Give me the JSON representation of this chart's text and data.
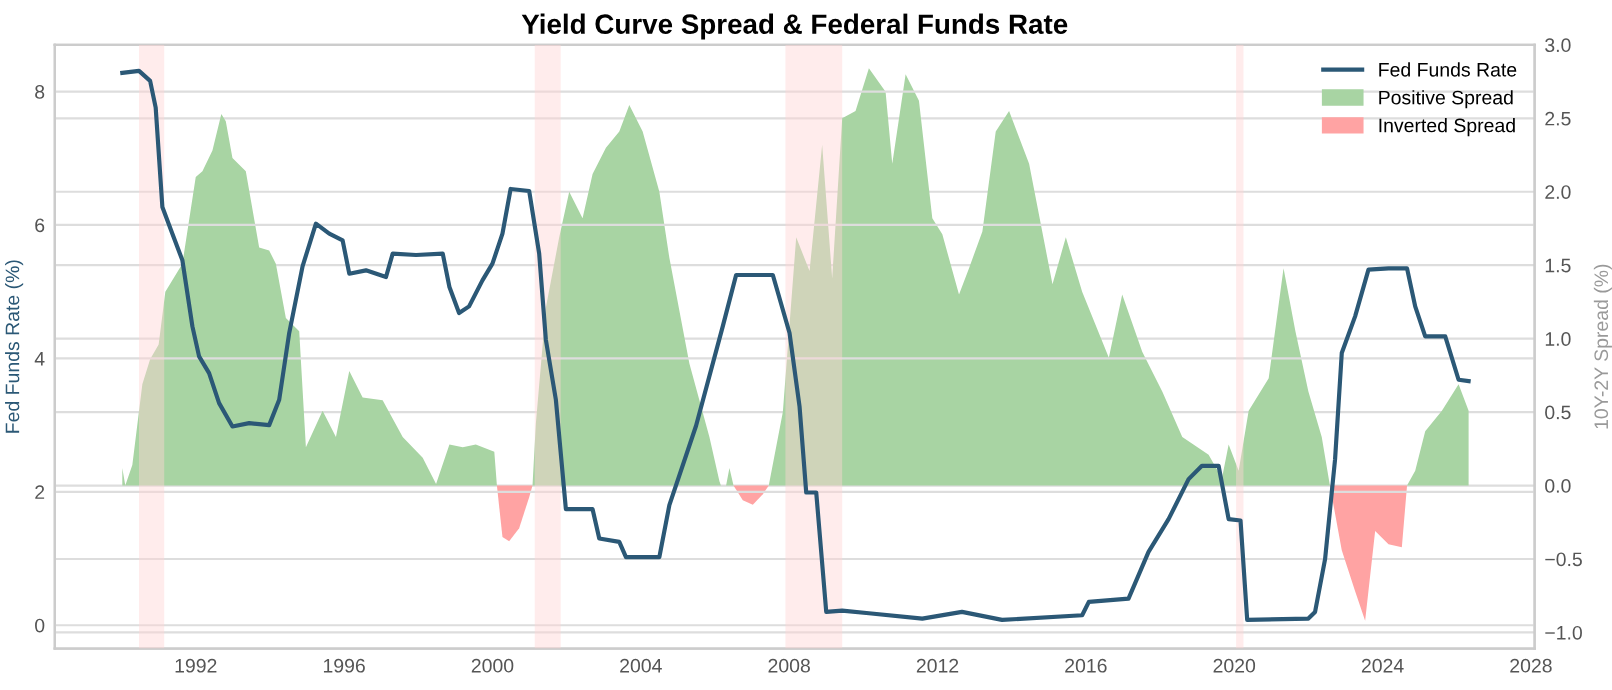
{
  "chart_data": {
    "type": "line",
    "title": "Yield Curve Spread & Federal Funds Rate",
    "ylabel": "Fed Funds Rate (%)",
    "y2label": "10Y-2Y Spread (%)",
    "xlim": [
      1988.2,
      2028.1
    ],
    "xticks": [
      1992,
      1996,
      2000,
      2004,
      2008,
      2012,
      2016,
      2020,
      2024,
      2028
    ],
    "ylim": [
      -0.35,
      8.7
    ],
    "yticks": [
      0,
      2,
      4,
      6,
      8
    ],
    "y2lim": [
      -1.11,
      3.0
    ],
    "y2ticks": [
      {
        "value": -1.0,
        "label": "−1.0"
      },
      {
        "value": -0.5,
        "label": "−0.5"
      },
      {
        "value": 0.0,
        "label": "0.0"
      },
      0.5,
      {
        "value": 1.0,
        "label": "1.0"
      },
      1.5,
      {
        "value": 2.0,
        "label": "2.0"
      },
      2.5,
      {
        "value": 3.0,
        "label": "3.0"
      }
    ],
    "grid": true,
    "legend": "top right",
    "series": [
      {
        "name": "Fed Funds Rate",
        "axis": "y",
        "color": "#2b5876",
        "x": [
          1990.02,
          1990.47,
          1990.77,
          1990.92,
          1991.1,
          1991.37,
          1991.64,
          1991.91,
          1992.09,
          1992.36,
          1992.63,
          1992.99,
          1993.44,
          1993.98,
          1994.25,
          1994.52,
          1994.88,
          1995.24,
          1995.6,
          1995.96,
          1996.14,
          1996.59,
          1997.13,
          1997.31,
          1997.94,
          1998.66,
          1998.84,
          1999.1,
          1999.37,
          1999.73,
          2000.0,
          2000.27,
          2000.49,
          2000.99,
          2001.26,
          2001.44,
          2001.71,
          2001.98,
          2002.7,
          2002.88,
          2003.42,
          2003.6,
          2004.5,
          2004.77,
          2005.49,
          2006.21,
          2006.57,
          2007.56,
          2008.01,
          2008.28,
          2008.46,
          2008.73,
          2009.0,
          2009.43,
          2010.15,
          2011.59,
          2012.66,
          2013.74,
          2015.9,
          2016.08,
          2017.15,
          2017.69,
          2018.23,
          2018.77,
          2019.13,
          2019.58,
          2019.85,
          2020.17,
          2020.35,
          2022.0,
          2022.18,
          2022.45,
          2022.72,
          2022.9,
          2023.26,
          2023.62,
          2024.16,
          2024.66,
          2024.88,
          2025.15,
          2025.69,
          2026.05,
          2026.32
        ],
        "values": [
          8.28,
          8.31,
          8.16,
          7.76,
          6.27,
          5.87,
          5.47,
          4.48,
          4.03,
          3.78,
          3.33,
          2.98,
          3.03,
          3.0,
          3.38,
          4.38,
          5.38,
          6.02,
          5.87,
          5.77,
          5.27,
          5.32,
          5.22,
          5.57,
          5.55,
          5.57,
          5.07,
          4.68,
          4.78,
          5.17,
          5.42,
          5.87,
          6.54,
          6.51,
          5.57,
          4.28,
          3.38,
          1.74,
          1.74,
          1.3,
          1.25,
          1.02,
          1.02,
          1.8,
          2.99,
          4.48,
          5.25,
          5.25,
          4.38,
          3.28,
          1.99,
          1.99,
          0.2,
          0.22,
          0.18,
          0.1,
          0.2,
          0.08,
          0.15,
          0.35,
          0.4,
          1.1,
          1.59,
          2.19,
          2.39,
          2.39,
          1.59,
          1.57,
          0.08,
          0.1,
          0.2,
          0.99,
          2.49,
          4.08,
          4.63,
          5.33,
          5.35,
          5.35,
          4.78,
          4.33,
          4.33,
          3.68,
          3.66
        ]
      },
      {
        "name": "Positive Spread",
        "type": "area",
        "axis": "y2",
        "color": "#a8d4a3",
        "x": [
          1990.02,
          1990.1,
          1990.29,
          1990.56,
          1990.77,
          1991.0,
          1991.18,
          1991.64,
          1992.0,
          1992.18,
          1992.45,
          1992.69,
          1992.81,
          1992.99,
          1993.35,
          1993.71,
          1993.98,
          1994.16,
          1994.43,
          1994.79,
          1994.97,
          1995.42,
          1995.78,
          1996.14,
          1996.5,
          1997.04,
          1997.58,
          1998.12,
          1998.48,
          1998.84,
          1999.2,
          1999.55,
          2000.05,
          2000.12,
          2000.5,
          2001.08,
          2001.17,
          2001.44,
          2001.8,
          2002.07,
          2002.43,
          2002.7,
          2003.06,
          2003.42,
          2003.69,
          2004.05,
          2004.5,
          2004.77,
          2005.31,
          2005.85,
          2006.12,
          2006.16,
          2006.2,
          2006.3,
          2006.39,
          2006.5,
          2007.0,
          2007.45,
          2007.83,
          2008.19,
          2008.55,
          2008.89,
          2009.16,
          2009.43,
          2009.79,
          2010.15,
          2010.6,
          2010.78,
          2011.14,
          2011.5,
          2011.86,
          2012.13,
          2012.58,
          2012.85,
          2013.21,
          2013.57,
          2013.93,
          2014.47,
          2015.1,
          2015.46,
          2015.9,
          2016.62,
          2016.98,
          2017.52,
          2018.06,
          2018.6,
          2019.31,
          2019.67,
          2019.85,
          2020.12,
          2020.39,
          2020.93,
          2021.33,
          2021.65,
          2022.0,
          2022.36,
          2022.58,
          2023.5,
          2024.66,
          2024.88,
          2025.15,
          2025.6,
          2026.05,
          2026.32
        ],
        "values": [
          0.12,
          0.0,
          0.14,
          0.69,
          0.86,
          0.96,
          1.32,
          1.51,
          2.1,
          2.14,
          2.28,
          2.53,
          2.48,
          2.23,
          2.14,
          1.62,
          1.6,
          1.51,
          1.14,
          1.05,
          0.26,
          0.51,
          0.33,
          0.78,
          0.6,
          0.58,
          0.33,
          0.19,
          0.01,
          0.28,
          0.26,
          0.28,
          0.23,
          0.0,
          null,
          0.0,
          0.42,
          1.21,
          1.69,
          2.0,
          1.82,
          2.12,
          2.3,
          2.41,
          2.59,
          2.41,
          2.0,
          1.55,
          0.83,
          0.33,
          0.03,
          0.0,
          0.0,
          0.0,
          0.12,
          0.0,
          null,
          0.0,
          0.5,
          1.69,
          1.46,
          2.32,
          1.41,
          2.5,
          2.55,
          2.84,
          2.68,
          2.19,
          2.8,
          2.62,
          1.82,
          1.71,
          1.3,
          1.48,
          1.73,
          2.41,
          2.55,
          2.19,
          1.37,
          1.69,
          1.32,
          0.87,
          1.3,
          0.91,
          0.64,
          0.33,
          0.21,
          0.05,
          0.28,
          0.1,
          0.51,
          0.73,
          1.48,
          1.05,
          0.64,
          0.33,
          0.0,
          null,
          0.0,
          0.1,
          0.37,
          0.51,
          0.69,
          0.51
        ]
      },
      {
        "name": "Inverted Spread",
        "type": "area",
        "axis": "y2",
        "color": "#ffa3a3",
        "x": [
          2000.12,
          2000.27,
          2000.45,
          2000.72,
          2000.99,
          2001.08,
          2003.0,
          2006.5,
          2006.75,
          2007.02,
          2007.29,
          2007.45,
          2015.0,
          2022.58,
          2022.9,
          2023.26,
          2023.53,
          2023.8,
          2024.16,
          2024.52,
          2024.66
        ],
        "values": [
          0.0,
          -0.35,
          -0.38,
          -0.29,
          -0.08,
          0.0,
          null,
          0.0,
          -0.1,
          -0.13,
          -0.06,
          0.0,
          null,
          0.0,
          -0.44,
          -0.72,
          -0.92,
          -0.31,
          -0.4,
          -0.42,
          0.0
        ]
      }
    ],
    "bands": [
      {
        "axis": "x",
        "from": 1990.47,
        "to": 1991.15,
        "color": "#ffd4d4"
      },
      {
        "axis": "x",
        "from": 2001.14,
        "to": 2001.84,
        "color": "#ffd4d4"
      },
      {
        "axis": "x",
        "from": 2007.9,
        "to": 2009.43,
        "color": "#ffd4d4"
      },
      {
        "axis": "x",
        "from": 2020.05,
        "to": 2020.25,
        "color": "#ffd4d4"
      }
    ]
  }
}
